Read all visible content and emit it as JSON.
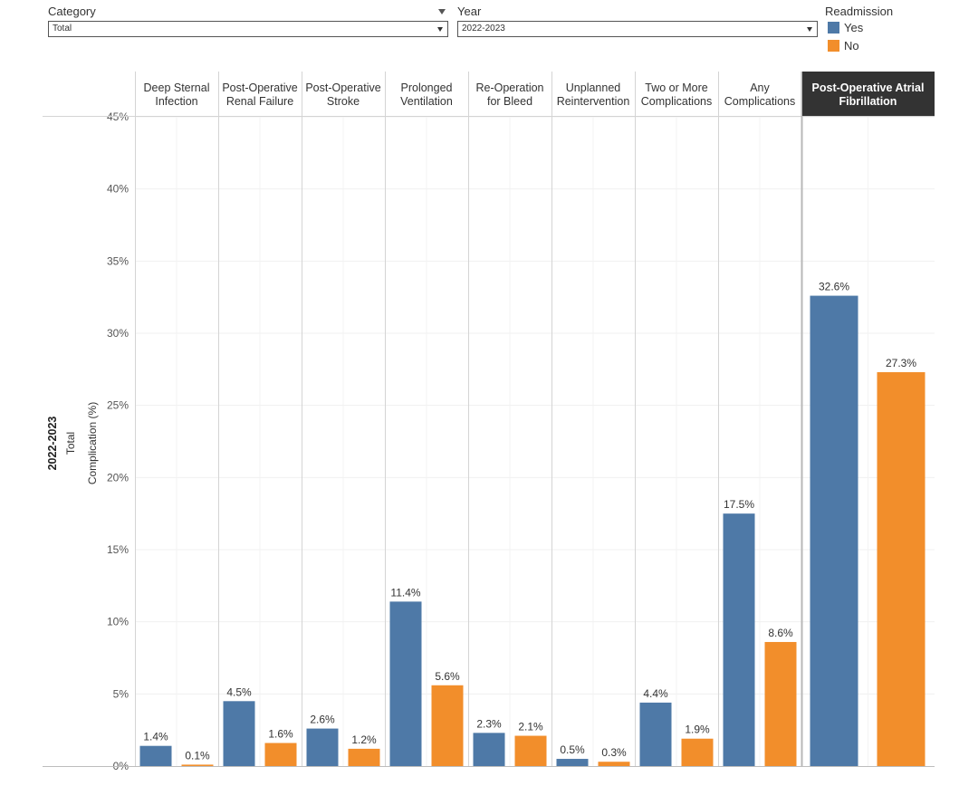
{
  "filters": {
    "category": {
      "label": "Category",
      "value": "Total"
    },
    "year": {
      "label": "Year",
      "value": "2022-2023"
    }
  },
  "legend": {
    "title": "Readmission",
    "items": [
      {
        "label": "Yes",
        "color": "#4e79a7"
      },
      {
        "label": "No",
        "color": "#f28e2b"
      }
    ]
  },
  "chart_data": {
    "type": "bar",
    "row_label": "2022-2023",
    "ylabel_line1": "Total",
    "ylabel_line2": "Complication (%)",
    "ylim": [
      0,
      45
    ],
    "yticks": [
      "0%",
      "5%",
      "10%",
      "15%",
      "20%",
      "25%",
      "30%",
      "35%",
      "40%",
      "45%"
    ],
    "grid": true,
    "legend_position": "top-right",
    "highlighted_category": "Post-Operative Atrial Fibrillation",
    "categories": [
      "Deep Sternal Infection",
      "Post-Operative Renal Failure",
      "Post-Operative Stroke",
      "Prolonged Ventilation",
      "Re-Operation for Bleed",
      "Unplanned Reintervention",
      "Two or More Complications",
      "Any Complications",
      "Post-Operative Atrial Fibrillation"
    ],
    "category_lines": [
      [
        "Deep Sternal",
        "Infection"
      ],
      [
        "Post-Operative",
        "Renal Failure"
      ],
      [
        "Post-Operative",
        "Stroke"
      ],
      [
        "Prolonged",
        "Ventilation"
      ],
      [
        "Re-Operation",
        "for Bleed"
      ],
      [
        "Unplanned",
        "Reintervention"
      ],
      [
        "Two or More",
        "Complications"
      ],
      [
        "Any",
        "Complications"
      ],
      [
        "Post-Operative Atrial",
        "Fibrillation"
      ]
    ],
    "series": [
      {
        "name": "Yes",
        "color": "#4e79a7",
        "values": [
          1.4,
          4.5,
          2.6,
          11.4,
          2.3,
          0.5,
          4.4,
          17.5,
          32.6
        ],
        "labels": [
          "1.4%",
          "4.5%",
          "2.6%",
          "11.4%",
          "2.3%",
          "0.5%",
          "4.4%",
          "17.5%",
          "32.6%"
        ]
      },
      {
        "name": "No",
        "color": "#f28e2b",
        "values": [
          0.1,
          1.6,
          1.2,
          5.6,
          2.1,
          0.3,
          1.9,
          8.6,
          27.3
        ],
        "labels": [
          "0.1%",
          "1.6%",
          "1.2%",
          "5.6%",
          "2.1%",
          "0.3%",
          "1.9%",
          "8.6%",
          "27.3%"
        ]
      }
    ]
  }
}
